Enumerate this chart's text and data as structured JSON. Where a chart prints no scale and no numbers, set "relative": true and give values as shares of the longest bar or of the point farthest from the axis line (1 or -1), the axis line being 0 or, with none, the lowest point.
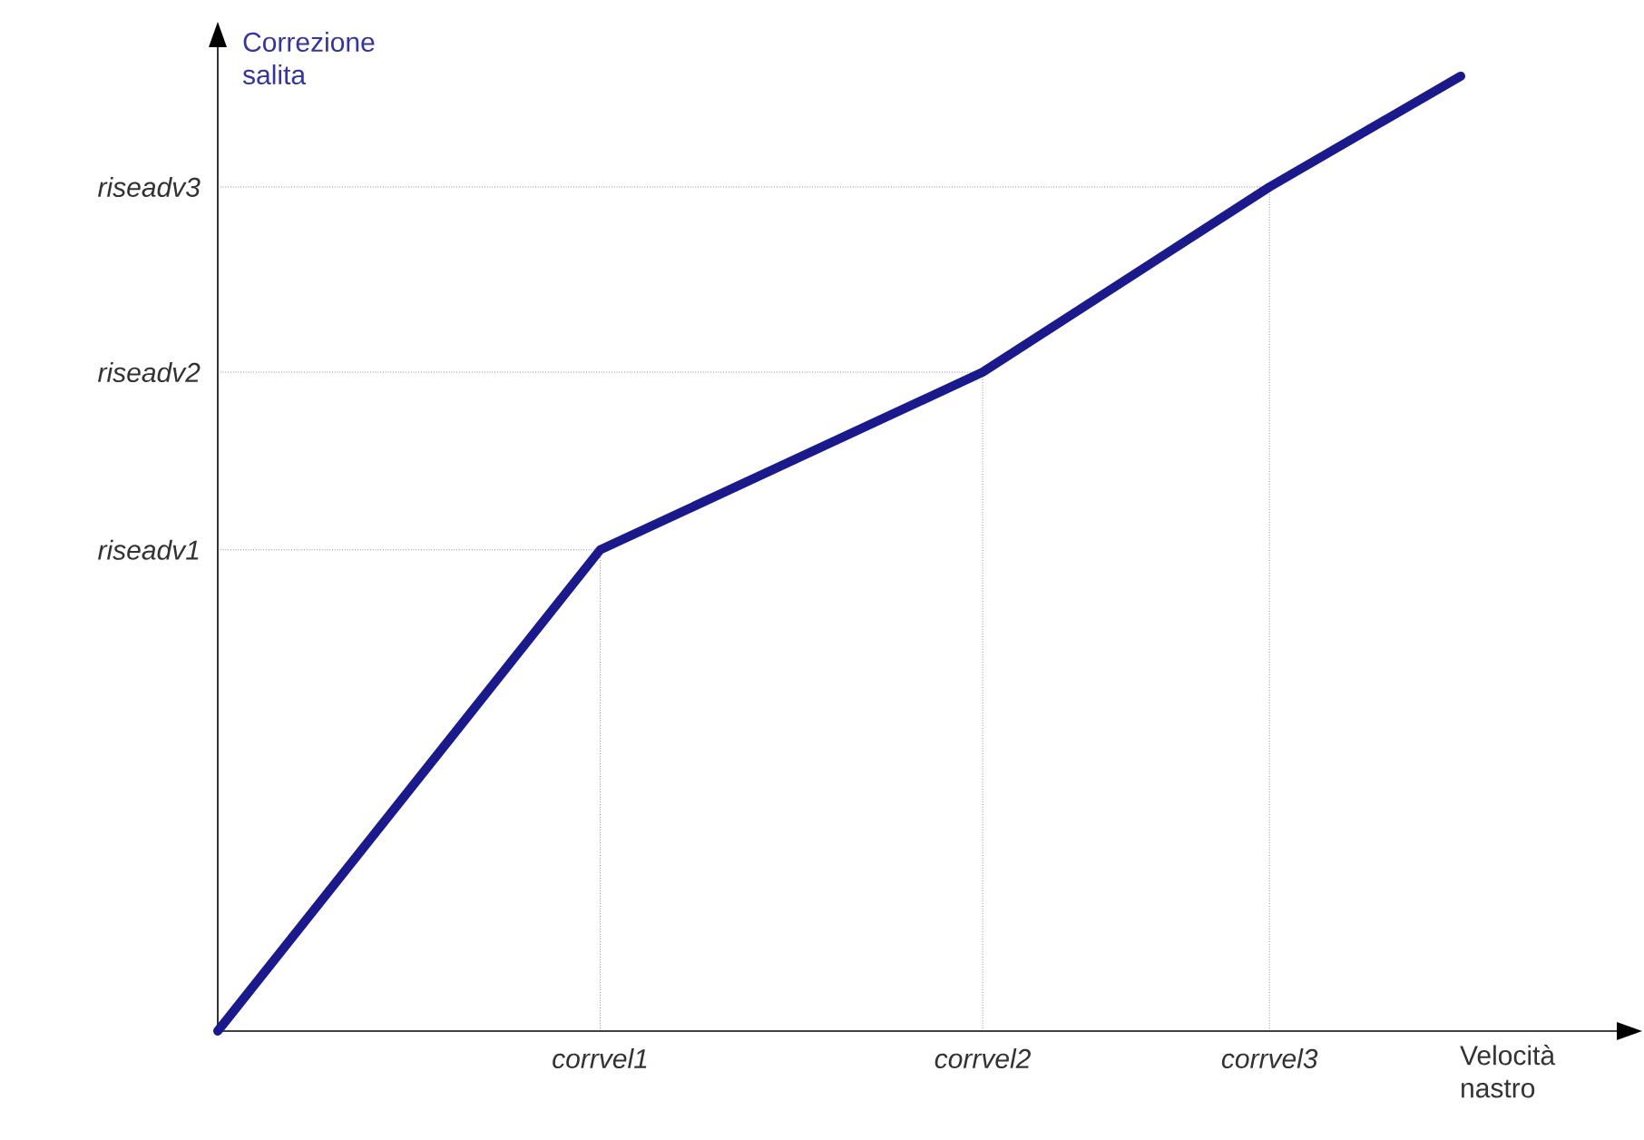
{
  "chart_data": {
    "type": "line",
    "relative": true,
    "xlabel": "Velocità nastro",
    "ylabel": "Correzione salita",
    "categories": [
      null,
      null,
      null,
      null,
      "corrvel1",
      null,
      null,
      null,
      "corrvel2",
      null,
      null,
      "corrvel3",
      null,
      null
    ],
    "annotations": [
      {
        "text": "riseadv1",
        "x": "corrvel1",
        "y": 0.504
      },
      {
        "text": "riseadv2",
        "x": "corrvel2",
        "y": 0.69
      },
      {
        "text": "riseadv3",
        "x": "corrvel3",
        "y": 0.884
      }
    ],
    "series": [
      {
        "color": "#1a1a8c",
        "values": [
          0,
          null,
          null,
          null,
          0.504,
          null,
          null,
          null,
          0.69,
          null,
          null,
          0.884,
          null,
          1
        ]
      }
    ],
    "marker": "none",
    "line_style": "solid"
  }
}
